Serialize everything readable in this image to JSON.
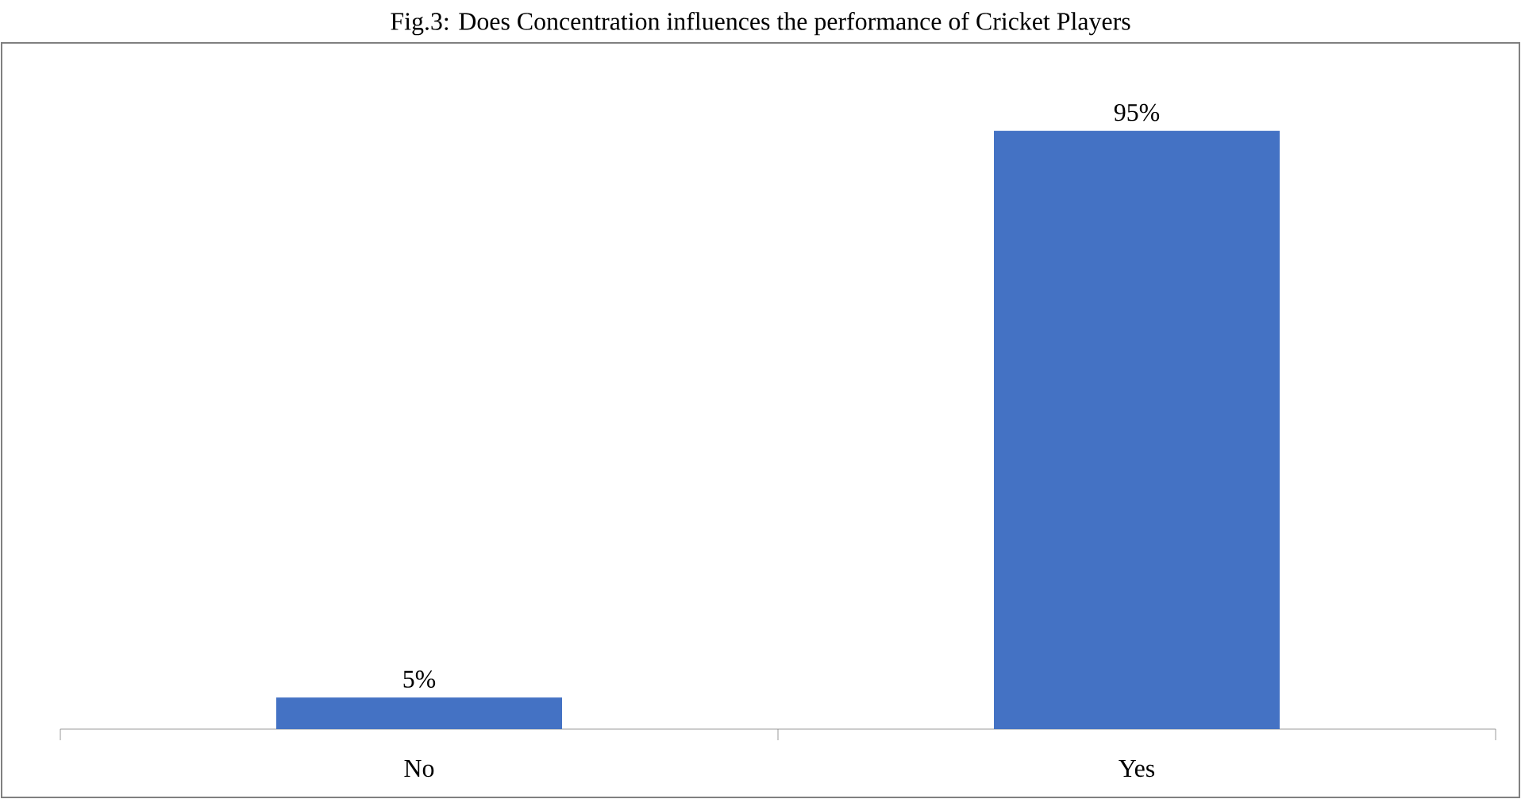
{
  "chart_data": {
    "type": "bar",
    "title": "Fig.3: Does Concentration influences the performance of Cricket Players",
    "categories": [
      "No",
      "Yes"
    ],
    "values": [
      5,
      95
    ],
    "value_labels": [
      "5%",
      "95%"
    ],
    "color": "#4472c4"
  }
}
